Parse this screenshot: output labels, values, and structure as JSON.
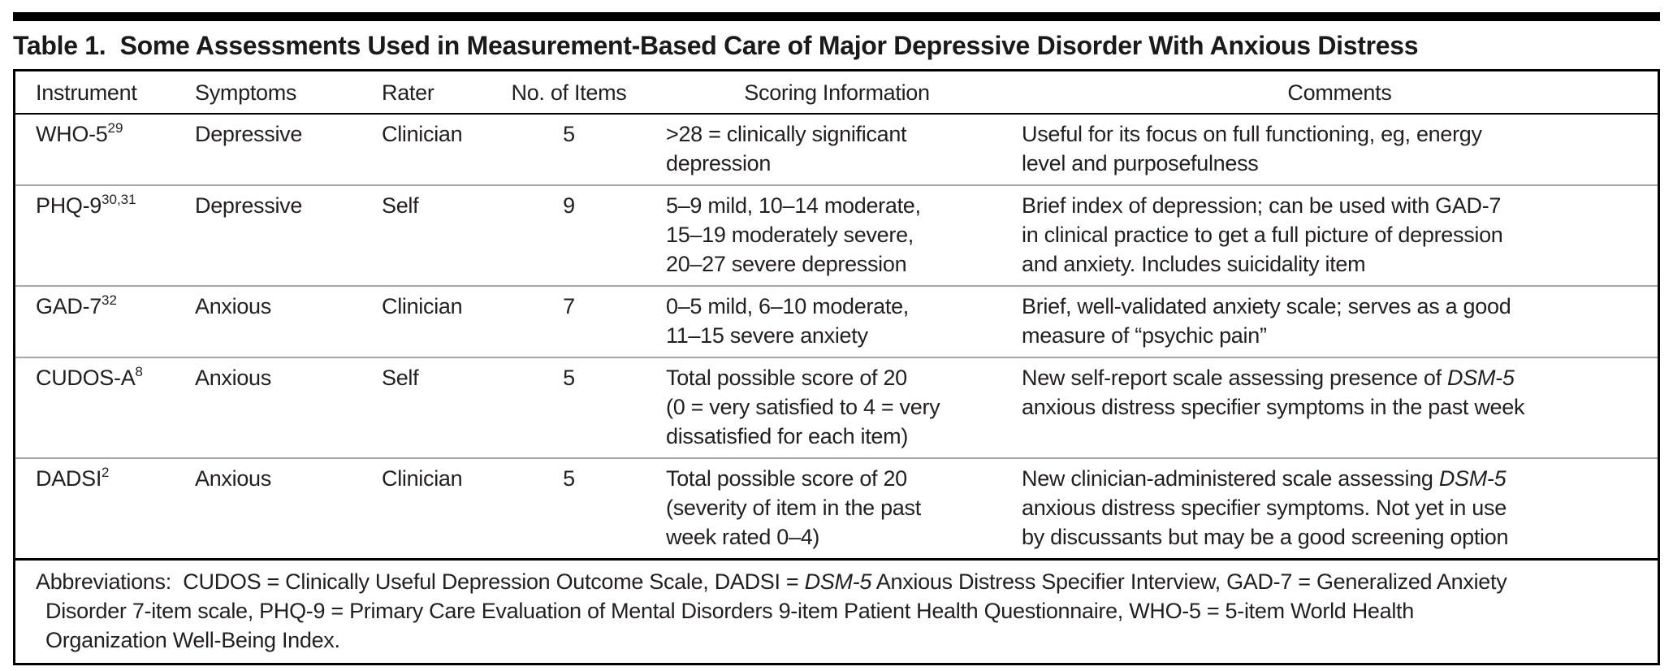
{
  "colors": {
    "text": "#231f20",
    "rule_black": "#000000",
    "rule_gray": "#a7a7a7",
    "background": "#ffffff"
  },
  "title": {
    "text": "Table 1.  Some Assessments Used in Measurement-Based Care of Major Depressive Disorder With Anxious Distress"
  },
  "table": {
    "headers": [
      "Instrument",
      "Symptoms",
      "Rater",
      "No. of Items",
      "Scoring Information",
      "Comments"
    ],
    "rows": [
      {
        "instrument": "WHO-5",
        "instrument_sup": "29",
        "symptoms": "Depressive",
        "rater": "Clinician",
        "no_of_items": "5",
        "scoring_information": [
          [
            {
              "t": ">28 = clinically significant"
            }
          ],
          [
            {
              "t": "depression"
            }
          ]
        ],
        "comments": [
          [
            {
              "t": "Useful for its focus on full functioning, eg, energy"
            }
          ],
          [
            {
              "t": "level and purposefulness"
            }
          ]
        ]
      },
      {
        "instrument": "PHQ-9",
        "instrument_sup": "30,31",
        "symptoms": "Depressive",
        "rater": "Self",
        "no_of_items": "9",
        "scoring_information": [
          [
            {
              "t": "5–9 mild, 10–14 moderate,"
            }
          ],
          [
            {
              "t": "15–19 moderately severe,"
            }
          ],
          [
            {
              "t": "20–27 severe depression"
            }
          ]
        ],
        "comments": [
          [
            {
              "t": "Brief index of depression; can be used with GAD-7"
            }
          ],
          [
            {
              "t": "in clinical practice to get a full picture of depression"
            }
          ],
          [
            {
              "t": "and anxiety. Includes suicidality item"
            }
          ]
        ]
      },
      {
        "instrument": "GAD-7",
        "instrument_sup": "32",
        "symptoms": "Anxious",
        "rater": "Clinician",
        "no_of_items": "7",
        "scoring_information": [
          [
            {
              "t": "0–5 mild, 6–10 moderate,"
            }
          ],
          [
            {
              "t": "11–15 severe anxiety"
            }
          ]
        ],
        "comments": [
          [
            {
              "t": "Brief, well-validated anxiety scale; serves as a good"
            }
          ],
          [
            {
              "t": "measure of “psychic pain”"
            }
          ]
        ]
      },
      {
        "instrument": "CUDOS-A",
        "instrument_sup": "8",
        "symptoms": "Anxious",
        "rater": "Self",
        "no_of_items": "5",
        "scoring_information": [
          [
            {
              "t": "Total possible score of 20"
            }
          ],
          [
            {
              "t": "(0 = very satisfied to 4 = very"
            }
          ],
          [
            {
              "t": "dissatisfied for each item)"
            }
          ]
        ],
        "comments": [
          [
            {
              "t": "New self-report scale assessing presence of "
            },
            {
              "t": "DSM-5",
              "i": true
            }
          ],
          [
            {
              "t": "anxious distress specifier symptoms in the past week"
            }
          ]
        ]
      },
      {
        "instrument": "DADSI",
        "instrument_sup": "2",
        "symptoms": "Anxious",
        "rater": "Clinician",
        "no_of_items": "5",
        "scoring_information": [
          [
            {
              "t": "Total possible score of 20"
            }
          ],
          [
            {
              "t": "(severity of item in the past"
            }
          ],
          [
            {
              "t": "week rated 0–4)"
            }
          ]
        ],
        "comments": [
          [
            {
              "t": "New clinician-administered scale assessing "
            },
            {
              "t": "DSM-5",
              "i": true
            }
          ],
          [
            {
              "t": "anxious distress specifier symptoms. Not yet in use"
            }
          ],
          [
            {
              "t": "by discussants but may be a good screening option"
            }
          ]
        ]
      }
    ],
    "abbreviations": {
      "lines": [
        [
          {
            "t": "Abbreviations:  CUDOS = Clinically Useful Depression Outcome Scale, DADSI = "
          },
          {
            "t": "DSM-5",
            "i": true
          },
          {
            "t": " Anxious Distress Specifier Interview, GAD-7 = Generalized Anxiety"
          }
        ],
        [
          {
            "t": "Disorder 7-item scale, PHQ-9 = Primary Care Evaluation of Mental Disorders 9-item Patient Health Questionnaire, WHO-5 = 5-item World Health"
          }
        ],
        [
          {
            "t": "Organization Well-Being Index."
          }
        ]
      ]
    }
  }
}
